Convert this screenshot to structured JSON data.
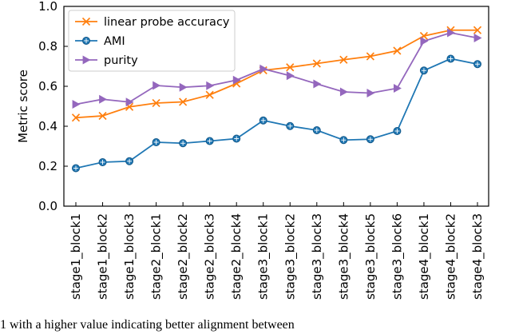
{
  "chart_data": {
    "type": "line",
    "title": "",
    "xlabel": "",
    "ylabel": "Metric score",
    "ylim": [
      0.0,
      1.0
    ],
    "yticks": [
      "0.0",
      "0.2",
      "0.4",
      "0.6",
      "0.8",
      "1.0"
    ],
    "grid": false,
    "legend_position": "top-left",
    "categories": [
      "stage1_block1",
      "stage1_block2",
      "stage1_block3",
      "stage2_block1",
      "stage2_block2",
      "stage2_block3",
      "stage2_block4",
      "stage3_block1",
      "stage3_block2",
      "stage3_block3",
      "stage3_block4",
      "stage3_block5",
      "stage3_block6",
      "stage4_block1",
      "stage4_block2",
      "stage4_block3"
    ],
    "series": [
      {
        "name": "linear probe accuracy",
        "color": "#ff7f0e",
        "marker": "x",
        "values": [
          0.443,
          0.452,
          0.497,
          0.516,
          0.522,
          0.557,
          0.614,
          0.68,
          0.695,
          0.714,
          0.733,
          0.75,
          0.778,
          0.852,
          0.881,
          0.881
        ]
      },
      {
        "name": "AMI",
        "color": "#1f77b4",
        "marker": "circle-plus",
        "values": [
          0.19,
          0.22,
          0.225,
          0.32,
          0.315,
          0.326,
          0.338,
          0.429,
          0.401,
          0.38,
          0.331,
          0.335,
          0.376,
          0.679,
          0.738,
          0.711
        ]
      },
      {
        "name": "purity",
        "color": "#9467bd",
        "marker": "triangle-right",
        "values": [
          0.51,
          0.535,
          0.521,
          0.604,
          0.595,
          0.603,
          0.631,
          0.687,
          0.653,
          0.612,
          0.572,
          0.566,
          0.59,
          0.826,
          0.868,
          0.842
        ]
      }
    ]
  },
  "caption_text": "1 with a higher value indicating better alignment between"
}
